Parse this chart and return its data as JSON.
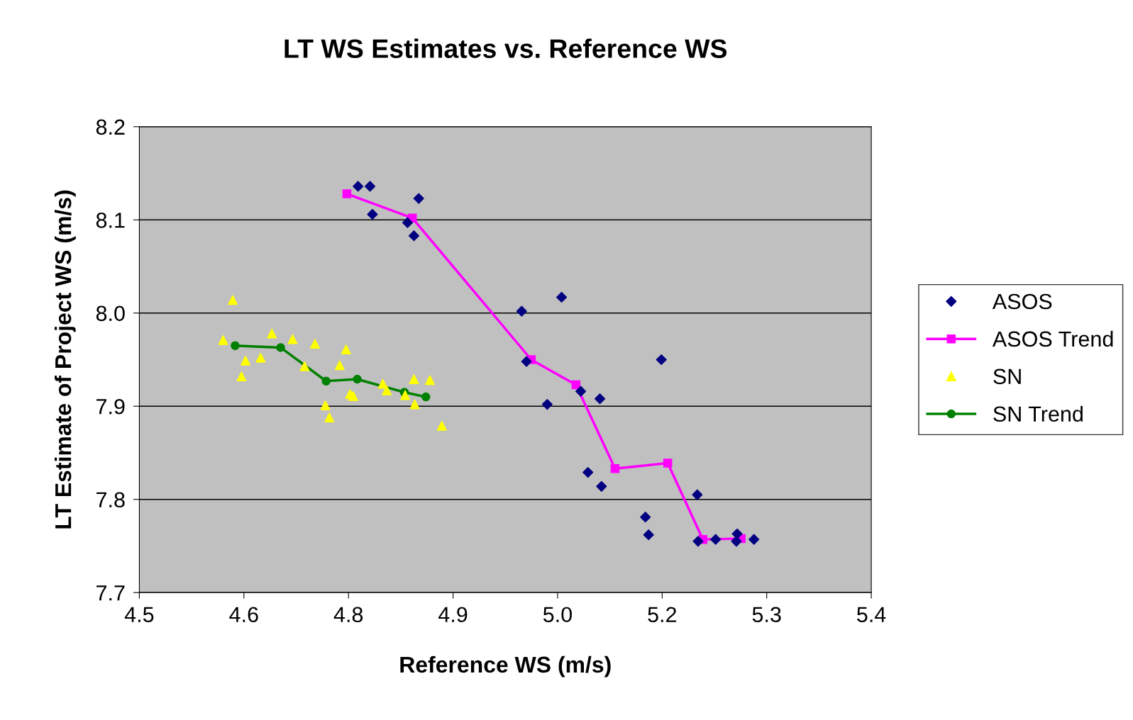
{
  "chart_data": {
    "type": "scatter",
    "title": "LT WS Estimates vs. Reference WS",
    "xlabel": "Reference WS (m/s)",
    "ylabel": "LT Estimate of Project WS (m/s)",
    "xlim": [
      4.5,
      5.417
    ],
    "xticks": [
      {
        "value": 4.5,
        "label": "4.5"
      },
      {
        "value": 4.631,
        "label": "4.6"
      },
      {
        "value": 4.762,
        "label": "4.8"
      },
      {
        "value": 4.893,
        "label": "4.9"
      },
      {
        "value": 5.024,
        "label": "5.0"
      },
      {
        "value": 5.155,
        "label": "5.2"
      },
      {
        "value": 5.286,
        "label": "5.3"
      },
      {
        "value": 5.417,
        "label": "5.4"
      }
    ],
    "ylim": [
      7.7,
      8.2
    ],
    "yticks": [
      {
        "value": 7.7,
        "label": "7.7"
      },
      {
        "value": 7.8,
        "label": "7.8"
      },
      {
        "value": 7.9,
        "label": "7.9"
      },
      {
        "value": 8.0,
        "label": "8.0"
      },
      {
        "value": 8.1,
        "label": "8.1"
      },
      {
        "value": 8.2,
        "label": "8.2"
      }
    ],
    "grid": "y",
    "legend": "right",
    "series": [
      {
        "name": "ASOS",
        "marker": "diamond",
        "color": "#000080",
        "x": [
          4.774,
          4.789,
          4.792,
          4.85,
          4.836,
          4.844,
          4.979,
          5.029,
          4.985,
          5.011,
          5.053,
          5.077,
          5.154,
          5.062,
          5.079,
          5.134,
          5.138,
          5.199,
          5.2,
          5.222,
          5.248,
          5.249,
          5.27
        ],
        "values": [
          8.136,
          8.136,
          8.106,
          8.123,
          8.097,
          8.083,
          8.002,
          8.017,
          7.948,
          7.902,
          7.916,
          7.908,
          7.95,
          7.829,
          7.814,
          7.781,
          7.762,
          7.805,
          7.755,
          7.757,
          7.755,
          7.763,
          7.757
        ]
      },
      {
        "name": "ASOS Trend",
        "type": "line",
        "marker": "square",
        "line_style": "solid",
        "color": "#ff00ff",
        "x": [
          4.76,
          4.842,
          4.991,
          5.047,
          5.096,
          5.162,
          5.206,
          5.254
        ],
        "values": [
          8.128,
          8.102,
          7.95,
          7.923,
          7.833,
          7.839,
          7.757,
          7.758
        ]
      },
      {
        "name": "SN",
        "marker": "triangle",
        "color": "#ffff00",
        "x": [
          4.605,
          4.617,
          4.633,
          4.628,
          4.652,
          4.666,
          4.692,
          4.707,
          4.72,
          4.733,
          4.738,
          4.751,
          4.759,
          4.764,
          4.768,
          4.805,
          4.81,
          4.833,
          4.844,
          4.845,
          4.864,
          4.879
        ],
        "values": [
          7.971,
          8.014,
          7.949,
          7.932,
          7.952,
          7.978,
          7.972,
          7.943,
          7.967,
          7.901,
          7.888,
          7.944,
          7.961,
          7.913,
          7.911,
          7.924,
          7.917,
          7.912,
          7.929,
          7.902,
          7.928,
          7.879
        ]
      },
      {
        "name": "SN Trend",
        "type": "line",
        "marker": "circle",
        "line_style": "solid",
        "color": "#008000",
        "x": [
          4.62,
          4.677,
          4.734,
          4.773,
          4.832,
          4.859
        ],
        "values": [
          7.965,
          7.963,
          7.927,
          7.929,
          7.915,
          7.91
        ]
      }
    ]
  }
}
